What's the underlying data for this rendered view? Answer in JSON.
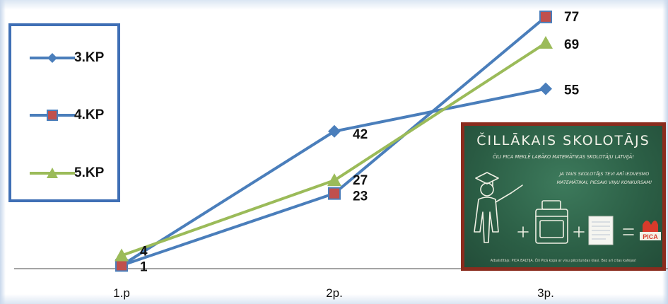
{
  "chart_data": {
    "type": "line",
    "categories": [
      "1.p",
      "2p.",
      "3p."
    ],
    "series": [
      {
        "name": "3.KP",
        "values": [
          1,
          42,
          55
        ],
        "color": "#4a7ebb",
        "marker": "diamond"
      },
      {
        "name": "4.KP",
        "values": [
          1,
          23,
          77
        ],
        "color": "#4a7ebb",
        "marker_fill": "#c0504d",
        "marker": "square"
      },
      {
        "name": "5.KP",
        "values": [
          4,
          27,
          69
        ],
        "color": "#9bbb59",
        "marker": "triangle"
      }
    ],
    "data_labels": [
      {
        "text": "4",
        "series": "5.KP",
        "category": "1.p"
      },
      {
        "text": "1",
        "series": "3.KP",
        "category": "1.p"
      },
      {
        "text": "42",
        "series": "3.KP",
        "category": "2p."
      },
      {
        "text": "27",
        "series": "5.KP",
        "category": "2p."
      },
      {
        "text": "23",
        "series": "4.KP",
        "category": "2p."
      },
      {
        "text": "77",
        "series": "4.KP",
        "category": "3p."
      },
      {
        "text": "69",
        "series": "5.KP",
        "category": "3p."
      },
      {
        "text": "55",
        "series": "3.KP",
        "category": "3p."
      }
    ],
    "ylim": [
      0,
      80
    ],
    "grid": false,
    "legend_placement": "left"
  },
  "legend": {
    "items": [
      {
        "label": "3.KP"
      },
      {
        "label": "4.KP"
      },
      {
        "label": "5.KP"
      }
    ]
  },
  "poster": {
    "title": "ČILLĀKAIS SKOLOTĀJS",
    "subtitle": "ČILI PICA MEKLĒ LABĀKO MATEMĀTIKAS SKOLOTĀJU LATVIJĀ!",
    "message": "JA TAVS SKOLOTĀJS TEVI ARĪ IEDVESMO MATEMĀTIKAI, PIESAKI VIŅU KONKURSAM!",
    "brand": "PICA",
    "footnote": "Atbalstītājs: PICA BALTIJA. Čili Picā kopā ar visu pēcstundas klasi. Bez arī citas kafejas!"
  }
}
